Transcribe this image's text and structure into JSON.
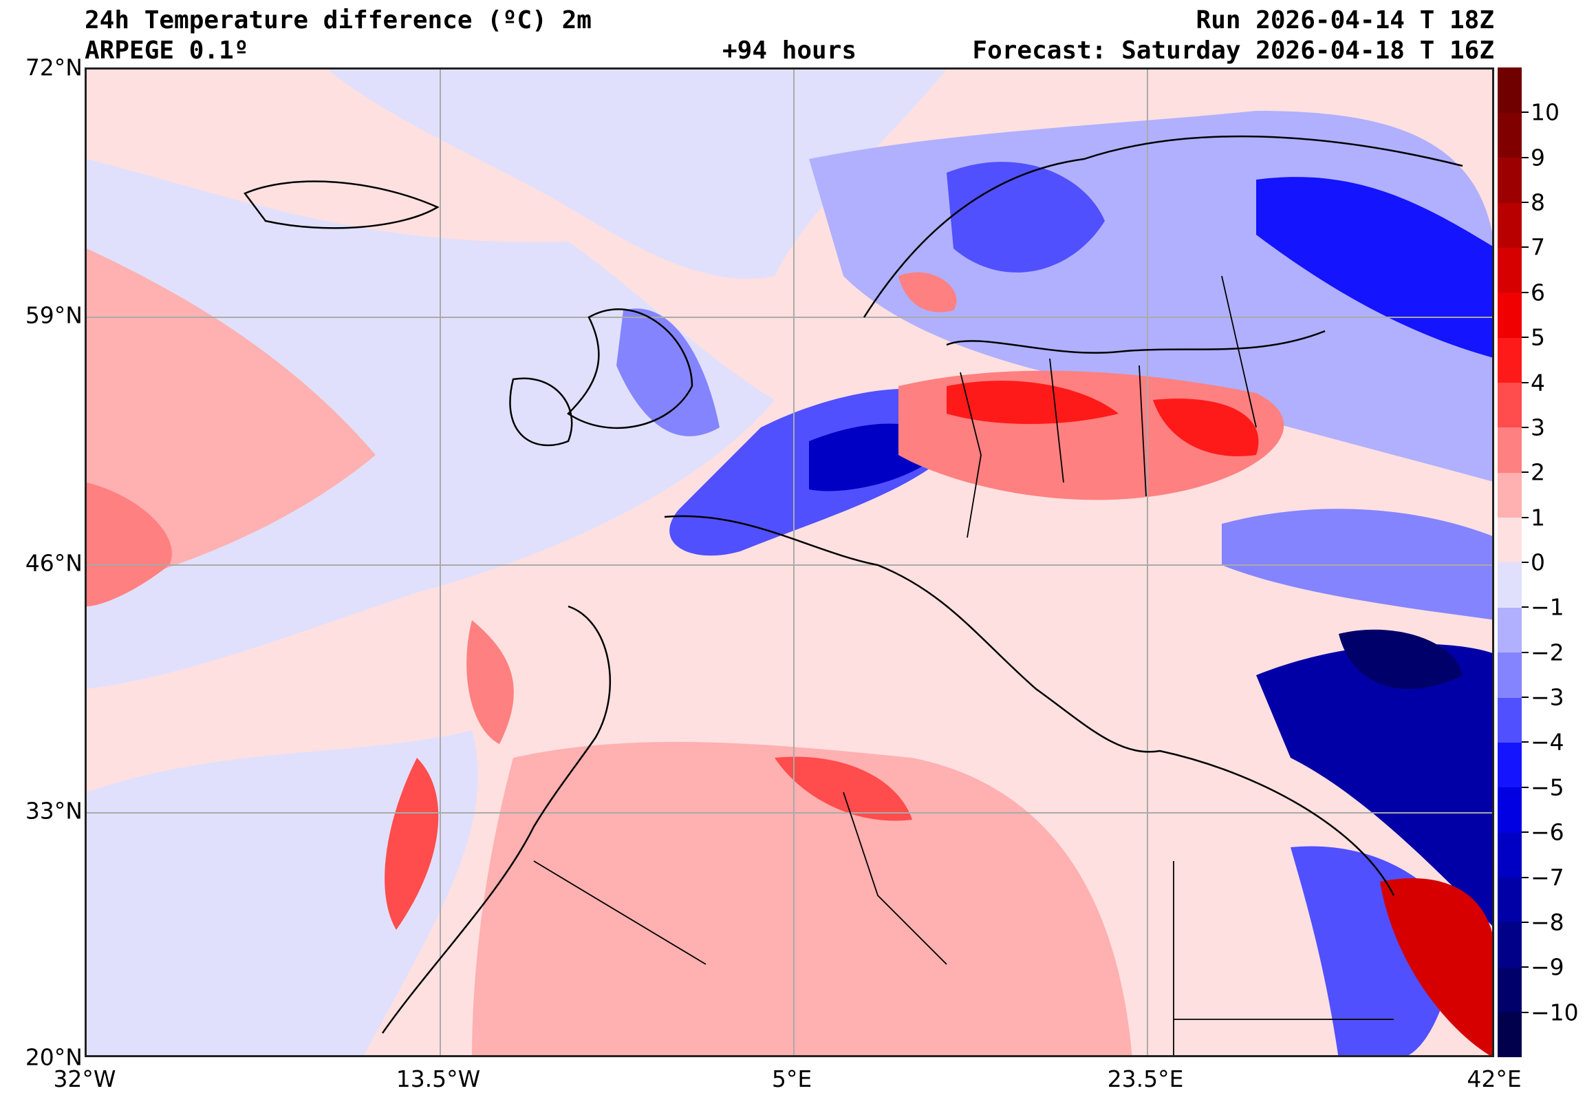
{
  "header": {
    "title": "24h Temperature difference (ºC) 2m",
    "model": "ARPEGE 0.1º",
    "lead": "+94 hours",
    "run": "Run 2026-04-14 T 18Z",
    "forecast": "Forecast: Saturday 2026-04-18 T 16Z"
  },
  "axes": {
    "lat_labels": [
      "72°N",
      "59°N",
      "46°N",
      "33°N",
      "20°N"
    ],
    "lon_labels": [
      "32°W",
      "13.5°W",
      "5°E",
      "23.5°E",
      "42°E"
    ]
  },
  "colorbar": {
    "levels": [
      -11,
      -10,
      -9,
      -8,
      -7,
      -6,
      -5,
      -4,
      -3,
      -2,
      -1,
      0,
      1,
      2,
      3,
      4,
      5,
      6,
      7,
      8,
      9,
      10,
      11
    ],
    "colors": [
      "#00004c",
      "#00006a",
      "#000088",
      "#0000a6",
      "#0000c4",
      "#0000e2",
      "#1414ff",
      "#5050ff",
      "#8484ff",
      "#b0b0ff",
      "#e0e0fc",
      "#ffe0e0",
      "#ffb0b0",
      "#ff8080",
      "#ff4c4c",
      "#ff1a1a",
      "#f00000",
      "#d60000",
      "#b80000",
      "#9c0000",
      "#800000",
      "#700000"
    ],
    "tick_labels": [
      "10",
      "9",
      "8",
      "7",
      "6",
      "5",
      "4",
      "3",
      "2",
      "1",
      "0",
      "−1",
      "−2",
      "−3",
      "−4",
      "−5",
      "−6",
      "−7",
      "−8",
      "−9",
      "−10"
    ]
  }
}
